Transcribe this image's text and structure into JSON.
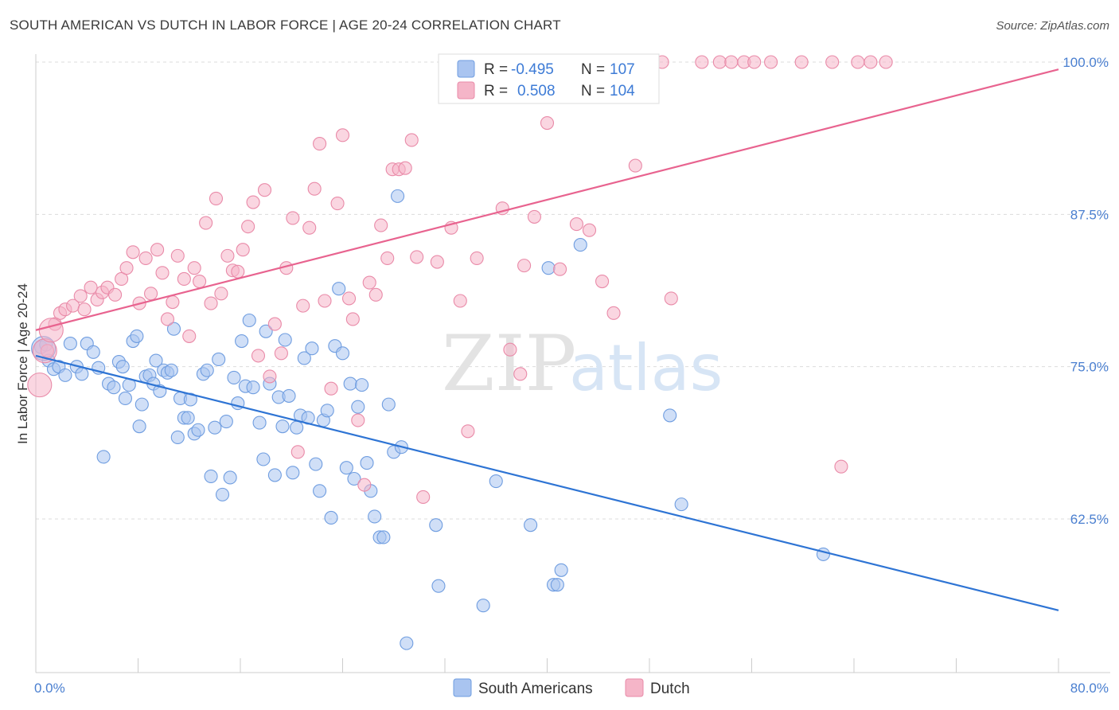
{
  "title": "SOUTH AMERICAN VS DUTCH IN LABOR FORCE | AGE 20-24 CORRELATION CHART",
  "source": "Source: ZipAtlas.com",
  "watermark": {
    "zip": "ZIP",
    "atlas": "atlas"
  },
  "legend": {
    "rows": [
      {
        "r_label": "R =",
        "r_value": "-0.495",
        "n_label": "N =",
        "n_value": "107",
        "color": "#a9c4f0"
      },
      {
        "r_label": "R =",
        "r_value": "0.508",
        "n_label": "N =",
        "n_value": "104",
        "color": "#f5b5c8"
      }
    ]
  },
  "bottom_legend": [
    {
      "label": "South Americans",
      "color": "#a9c4f0"
    },
    {
      "label": "Dutch",
      "color": "#f5b5c8"
    }
  ],
  "chart_data": {
    "type": "scatter",
    "ylabel": "In Labor Force | Age 20-24",
    "xlim": [
      0,
      80
    ],
    "ylim": [
      50,
      102
    ],
    "x_tick_labels": [
      {
        "value": 0,
        "label": "0.0%"
      },
      {
        "value": 80,
        "label": "80.0%"
      }
    ],
    "y_tick_labels": [
      {
        "value": 62.5,
        "label": "62.5%"
      },
      {
        "value": 75.0,
        "label": "75.0%"
      },
      {
        "value": 87.5,
        "label": "87.5%"
      },
      {
        "value": 100.0,
        "label": "100.0%"
      }
    ],
    "grid": true,
    "series": [
      {
        "name": "South Americans",
        "color": "#a9c4f0",
        "edge": "#6f9de0",
        "trend": {
          "x": [
            0,
            80
          ],
          "y": [
            75.9,
            55.0
          ],
          "color": "#2e74d4"
        },
        "points": [
          [
            0.4,
            76.6
          ],
          [
            0.8,
            76.8
          ],
          [
            1.0,
            75.5
          ],
          [
            1.4,
            74.8
          ],
          [
            1.8,
            75.0
          ],
          [
            2.3,
            74.3
          ],
          [
            2.7,
            76.9
          ],
          [
            3.2,
            75.0
          ],
          [
            3.6,
            74.4
          ],
          [
            4.0,
            76.9
          ],
          [
            4.5,
            76.2
          ],
          [
            4.9,
            74.9
          ],
          [
            5.3,
            67.6
          ],
          [
            5.7,
            73.6
          ],
          [
            6.1,
            73.3
          ],
          [
            6.5,
            75.4
          ],
          [
            6.8,
            75.0
          ],
          [
            7.0,
            72.4
          ],
          [
            7.3,
            73.5
          ],
          [
            7.6,
            77.1
          ],
          [
            7.9,
            77.5
          ],
          [
            8.1,
            70.1
          ],
          [
            8.3,
            71.9
          ],
          [
            8.6,
            74.2
          ],
          [
            8.9,
            74.3
          ],
          [
            9.2,
            73.6
          ],
          [
            9.4,
            75.5
          ],
          [
            9.7,
            73.0
          ],
          [
            10.0,
            74.7
          ],
          [
            10.3,
            74.5
          ],
          [
            10.6,
            74.7
          ],
          [
            10.8,
            78.1
          ],
          [
            11.1,
            69.2
          ],
          [
            11.3,
            72.4
          ],
          [
            11.6,
            70.8
          ],
          [
            11.9,
            70.8
          ],
          [
            12.1,
            72.3
          ],
          [
            12.4,
            69.5
          ],
          [
            12.7,
            69.8
          ],
          [
            13.1,
            74.4
          ],
          [
            13.4,
            74.7
          ],
          [
            13.7,
            66.0
          ],
          [
            14.0,
            70.0
          ],
          [
            14.3,
            75.6
          ],
          [
            14.6,
            64.5
          ],
          [
            14.9,
            70.5
          ],
          [
            15.2,
            65.9
          ],
          [
            15.5,
            74.1
          ],
          [
            15.8,
            72.0
          ],
          [
            16.1,
            77.1
          ],
          [
            16.4,
            73.4
          ],
          [
            16.7,
            78.8
          ],
          [
            17.0,
            73.3
          ],
          [
            17.5,
            70.4
          ],
          [
            17.8,
            67.4
          ],
          [
            18.0,
            77.9
          ],
          [
            18.3,
            73.6
          ],
          [
            18.7,
            66.1
          ],
          [
            19.0,
            72.5
          ],
          [
            19.3,
            70.1
          ],
          [
            19.5,
            77.2
          ],
          [
            19.8,
            72.6
          ],
          [
            20.1,
            66.3
          ],
          [
            20.4,
            70.0
          ],
          [
            20.7,
            71.0
          ],
          [
            21.0,
            75.7
          ],
          [
            21.3,
            70.8
          ],
          [
            21.6,
            76.5
          ],
          [
            21.9,
            67.0
          ],
          [
            22.2,
            64.8
          ],
          [
            22.5,
            70.6
          ],
          [
            22.8,
            71.4
          ],
          [
            23.1,
            62.6
          ],
          [
            23.4,
            76.7
          ],
          [
            23.7,
            81.4
          ],
          [
            24.0,
            76.1
          ],
          [
            24.3,
            66.7
          ],
          [
            24.6,
            73.6
          ],
          [
            24.9,
            65.8
          ],
          [
            25.2,
            71.7
          ],
          [
            25.5,
            73.5
          ],
          [
            25.9,
            67.1
          ],
          [
            26.2,
            64.8
          ],
          [
            26.5,
            62.7
          ],
          [
            26.9,
            61.0
          ],
          [
            27.2,
            61.0
          ],
          [
            27.6,
            71.9
          ],
          [
            28.0,
            68.0
          ],
          [
            28.3,
            89.0
          ],
          [
            28.6,
            68.4
          ],
          [
            29.0,
            52.3
          ],
          [
            31.3,
            62.0
          ],
          [
            31.5,
            57.0
          ],
          [
            35.0,
            55.4
          ],
          [
            36.0,
            65.6
          ],
          [
            38.7,
            62.0
          ],
          [
            40.1,
            83.1
          ],
          [
            40.5,
            57.1
          ],
          [
            40.8,
            57.1
          ],
          [
            41.1,
            58.3
          ],
          [
            42.6,
            85.0
          ],
          [
            49.6,
            71.0
          ],
          [
            50.5,
            63.7
          ],
          [
            61.6,
            59.6
          ]
        ],
        "big": [
          [
            0.6,
            76.5
          ]
        ]
      },
      {
        "name": "Dutch",
        "color": "#f5b5c8",
        "edge": "#e98aa8",
        "trend": {
          "x": [
            0,
            80
          ],
          "y": [
            78.0,
            99.4
          ],
          "color": "#e8638f"
        },
        "points": [
          [
            0.9,
            76.3
          ],
          [
            1.5,
            78.5
          ],
          [
            1.9,
            79.4
          ],
          [
            2.3,
            79.7
          ],
          [
            2.9,
            80.0
          ],
          [
            3.5,
            80.8
          ],
          [
            3.8,
            79.7
          ],
          [
            4.3,
            81.5
          ],
          [
            4.8,
            80.5
          ],
          [
            5.2,
            81.1
          ],
          [
            5.6,
            81.5
          ],
          [
            6.2,
            80.9
          ],
          [
            6.7,
            82.2
          ],
          [
            7.1,
            83.1
          ],
          [
            7.6,
            84.4
          ],
          [
            8.1,
            80.2
          ],
          [
            8.6,
            83.9
          ],
          [
            9.0,
            81.0
          ],
          [
            9.5,
            84.6
          ],
          [
            9.9,
            82.7
          ],
          [
            10.3,
            78.9
          ],
          [
            10.7,
            80.3
          ],
          [
            11.1,
            84.1
          ],
          [
            11.6,
            82.2
          ],
          [
            12.0,
            77.5
          ],
          [
            12.4,
            83.1
          ],
          [
            12.8,
            82.0
          ],
          [
            13.3,
            86.8
          ],
          [
            13.7,
            80.2
          ],
          [
            14.1,
            88.8
          ],
          [
            14.5,
            81.0
          ],
          [
            15.0,
            84.1
          ],
          [
            15.4,
            82.9
          ],
          [
            15.8,
            82.8
          ],
          [
            16.2,
            84.6
          ],
          [
            16.6,
            86.5
          ],
          [
            17.0,
            88.5
          ],
          [
            17.4,
            75.9
          ],
          [
            17.9,
            89.5
          ],
          [
            18.3,
            74.2
          ],
          [
            18.7,
            78.5
          ],
          [
            19.2,
            76.1
          ],
          [
            19.6,
            83.1
          ],
          [
            20.1,
            87.2
          ],
          [
            20.5,
            68.0
          ],
          [
            20.9,
            80.0
          ],
          [
            21.4,
            86.4
          ],
          [
            21.8,
            89.6
          ],
          [
            22.2,
            93.3
          ],
          [
            22.6,
            80.4
          ],
          [
            23.1,
            73.2
          ],
          [
            23.6,
            88.4
          ],
          [
            24.0,
            94.0
          ],
          [
            24.5,
            80.6
          ],
          [
            24.8,
            78.9
          ],
          [
            25.2,
            70.6
          ],
          [
            25.7,
            65.3
          ],
          [
            26.1,
            81.9
          ],
          [
            26.6,
            80.9
          ],
          [
            27.0,
            86.6
          ],
          [
            27.5,
            83.9
          ],
          [
            27.9,
            91.2
          ],
          [
            28.4,
            91.2
          ],
          [
            28.9,
            91.3
          ],
          [
            29.4,
            93.6
          ],
          [
            29.8,
            84.0
          ],
          [
            30.3,
            64.3
          ],
          [
            31.4,
            83.6
          ],
          [
            32.5,
            86.4
          ],
          [
            33.2,
            80.4
          ],
          [
            33.8,
            69.7
          ],
          [
            34.5,
            83.9
          ],
          [
            36.5,
            88.0
          ],
          [
            37.1,
            76.4
          ],
          [
            37.9,
            74.4
          ],
          [
            38.2,
            83.3
          ],
          [
            39.0,
            87.3
          ],
          [
            40.0,
            95.0
          ],
          [
            41.0,
            83.0
          ],
          [
            42.3,
            86.7
          ],
          [
            43.3,
            86.2
          ],
          [
            44.3,
            82.0
          ],
          [
            45.2,
            79.4
          ],
          [
            46.9,
            91.5
          ],
          [
            49.7,
            80.6
          ],
          [
            52.1,
            100.0
          ],
          [
            53.5,
            100.0
          ],
          [
            54.4,
            100.0
          ],
          [
            55.4,
            100.0
          ],
          [
            56.2,
            100.0
          ],
          [
            57.5,
            100.0
          ],
          [
            59.9,
            100.0
          ],
          [
            62.3,
            100.0
          ],
          [
            64.3,
            100.0
          ],
          [
            65.3,
            100.0
          ],
          [
            66.5,
            100.0
          ],
          [
            32.1,
            100.0
          ],
          [
            38.0,
            100.0
          ],
          [
            49.0,
            100.0
          ],
          [
            63.0,
            66.8
          ]
        ],
        "big": [
          [
            0.3,
            73.5
          ],
          [
            0.7,
            76.3
          ],
          [
            1.2,
            78.0
          ]
        ]
      }
    ]
  }
}
